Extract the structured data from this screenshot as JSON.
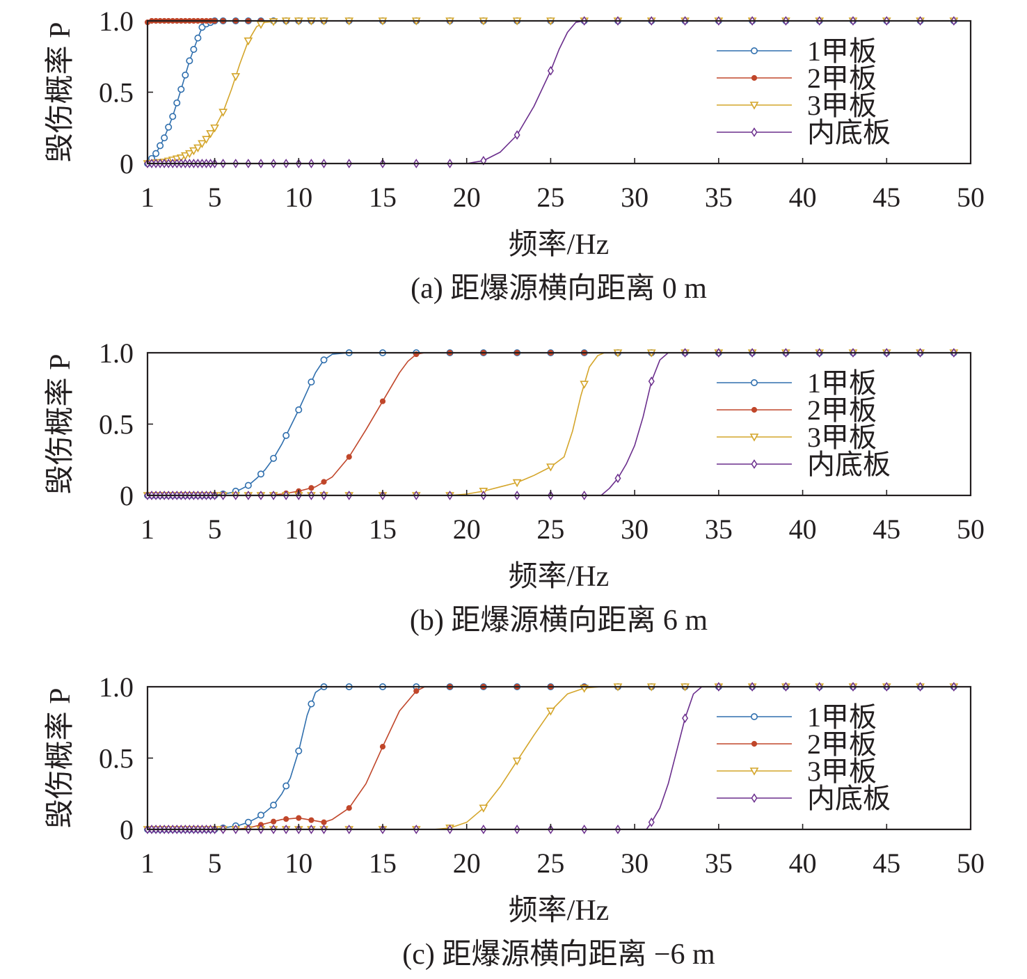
{
  "colors": {
    "1甲板": "#2e6ead",
    "2甲板": "#c0462a",
    "3甲板": "#d4a52a",
    "内底板": "#6a2d8c",
    "axis": "#231f20"
  },
  "chart_data": [
    {
      "type": "line",
      "caption": "(a) 距爆源横向距离 0 m",
      "xlabel": "频率/Hz",
      "ylabel": "毁伤概率 P",
      "xticks": [
        1,
        5,
        10,
        15,
        20,
        25,
        30,
        35,
        40,
        45,
        50
      ],
      "yticks": [
        0,
        0.5,
        1.0
      ],
      "ytick_labels": [
        "0",
        "0.5",
        "1.0"
      ],
      "xlim": [
        1,
        50
      ],
      "ylim": [
        0,
        1
      ],
      "legend_position": "top-right",
      "series": [
        {
          "name": "1甲板",
          "marker": "circle",
          "x": [
            1,
            1.5,
            2,
            2.5,
            3,
            3.5,
            4,
            4.3,
            5,
            6,
            8,
            10,
            20,
            50
          ],
          "y": [
            0,
            0.07,
            0.18,
            0.33,
            0.52,
            0.72,
            0.88,
            0.97,
            1,
            1,
            1,
            1,
            1,
            1
          ]
        },
        {
          "name": "2甲板",
          "marker": "dot",
          "x": [
            1,
            1.2,
            5,
            10,
            20,
            30,
            40,
            50
          ],
          "y": [
            0.99,
            1,
            1,
            1,
            1,
            1,
            1,
            1
          ]
        },
        {
          "name": "3甲板",
          "marker": "triangle-down",
          "x": [
            1,
            2,
            3,
            3.5,
            4,
            4.5,
            5,
            5.5,
            6,
            6.5,
            7,
            7.5,
            8,
            9,
            10,
            20,
            50
          ],
          "y": [
            0,
            0.01,
            0.04,
            0.07,
            0.11,
            0.17,
            0.25,
            0.36,
            0.52,
            0.7,
            0.86,
            0.96,
            0.99,
            1,
            1,
            1,
            1
          ]
        },
        {
          "name": "内底板",
          "marker": "diamond",
          "x": [
            1,
            10,
            20,
            20.5,
            21,
            22,
            23,
            24,
            25,
            25.5,
            26,
            26.5,
            27,
            30,
            50
          ],
          "y": [
            0,
            0,
            0,
            0.01,
            0.02,
            0.08,
            0.2,
            0.4,
            0.65,
            0.8,
            0.92,
            0.99,
            1,
            1,
            1
          ]
        }
      ]
    },
    {
      "type": "line",
      "caption": "(b) 距爆源横向距离 6 m",
      "xlabel": "频率/Hz",
      "ylabel": "毁伤概率 P",
      "xticks": [
        1,
        5,
        10,
        15,
        20,
        25,
        30,
        35,
        40,
        45,
        50
      ],
      "yticks": [
        0,
        0.5,
        1.0
      ],
      "ytick_labels": [
        "0",
        "0.5",
        "1.0"
      ],
      "xlim": [
        1,
        50
      ],
      "ylim": [
        0,
        1
      ],
      "legend_position": "top-right",
      "series": [
        {
          "name": "1甲板",
          "marker": "circle",
          "x": [
            1,
            4,
            5,
            5.5,
            6,
            6.5,
            7,
            7.5,
            8,
            8.5,
            9,
            9.5,
            10,
            10.5,
            11,
            11.5,
            12,
            13,
            20,
            50
          ],
          "y": [
            0,
            0,
            0,
            0.01,
            0.02,
            0.04,
            0.07,
            0.12,
            0.18,
            0.26,
            0.36,
            0.48,
            0.6,
            0.73,
            0.86,
            0.95,
            0.99,
            1,
            1,
            1
          ]
        },
        {
          "name": "2甲板",
          "marker": "dot",
          "x": [
            1,
            8,
            9,
            10,
            11,
            12,
            13,
            14,
            15,
            16,
            16.5,
            17,
            17.5,
            20,
            50
          ],
          "y": [
            0,
            0,
            0.01,
            0.03,
            0.06,
            0.13,
            0.27,
            0.46,
            0.66,
            0.86,
            0.94,
            0.99,
            1,
            1,
            1
          ]
        },
        {
          "name": "3甲板",
          "marker": "triangle-down",
          "x": [
            1,
            19,
            20,
            21,
            22,
            23,
            24,
            25,
            25.8,
            26.3,
            26.8,
            27.3,
            27.8,
            28.2,
            30,
            50
          ],
          "y": [
            0,
            0,
            0.01,
            0.03,
            0.06,
            0.09,
            0.14,
            0.2,
            0.27,
            0.45,
            0.7,
            0.9,
            0.98,
            1,
            1,
            1
          ]
        },
        {
          "name": "内底板",
          "marker": "diamond",
          "x": [
            1,
            27,
            28,
            28.5,
            29,
            29.5,
            30,
            30.5,
            31,
            31.5,
            32,
            35,
            50
          ],
          "y": [
            0,
            0,
            0,
            0.05,
            0.12,
            0.22,
            0.35,
            0.55,
            0.8,
            0.95,
            1,
            1,
            1
          ]
        }
      ]
    },
    {
      "type": "line",
      "caption": "(c) 距爆源横向距离 −6 m",
      "xlabel": "频率/Hz",
      "ylabel": "毁伤概率 P",
      "xticks": [
        1,
        5,
        10,
        15,
        20,
        25,
        30,
        35,
        40,
        45,
        50
      ],
      "yticks": [
        0,
        0.5,
        1.0
      ],
      "ytick_labels": [
        "0",
        "0.5",
        "1.0"
      ],
      "xlim": [
        1,
        50
      ],
      "ylim": [
        0,
        1
      ],
      "legend_position": "top-right",
      "series": [
        {
          "name": "1甲板",
          "marker": "circle",
          "x": [
            1,
            4,
            5,
            5.5,
            6,
            6.5,
            7,
            7.5,
            8,
            8.5,
            9,
            9.5,
            10,
            10.5,
            11,
            11.5,
            12,
            20,
            50
          ],
          "y": [
            0,
            0,
            0,
            0.01,
            0.02,
            0.03,
            0.05,
            0.08,
            0.12,
            0.17,
            0.25,
            0.36,
            0.55,
            0.8,
            0.96,
            1,
            1,
            1,
            1
          ]
        },
        {
          "name": "2甲板",
          "marker": "dot",
          "x": [
            1,
            6,
            7,
            8,
            9,
            10,
            11,
            11.5,
            12,
            13,
            14,
            15,
            16,
            17,
            17.5,
            20,
            50
          ],
          "y": [
            0,
            0,
            0.01,
            0.04,
            0.07,
            0.08,
            0.06,
            0.05,
            0.07,
            0.15,
            0.32,
            0.58,
            0.83,
            0.97,
            1,
            1,
            1
          ]
        },
        {
          "name": "3甲板",
          "marker": "triangle-down",
          "x": [
            1,
            18,
            19,
            20,
            21,
            22,
            23,
            24,
            25,
            26,
            27,
            28,
            30,
            50
          ],
          "y": [
            0,
            0,
            0.01,
            0.05,
            0.15,
            0.3,
            0.48,
            0.66,
            0.83,
            0.95,
            0.99,
            1,
            1,
            1
          ]
        },
        {
          "name": "内底板",
          "marker": "diamond",
          "x": [
            1,
            30,
            30.7,
            31,
            31.5,
            32,
            32.5,
            33,
            33.5,
            34,
            50
          ],
          "y": [
            0,
            0,
            0,
            0.05,
            0.15,
            0.32,
            0.55,
            0.78,
            0.95,
            1,
            1
          ]
        }
      ]
    }
  ]
}
